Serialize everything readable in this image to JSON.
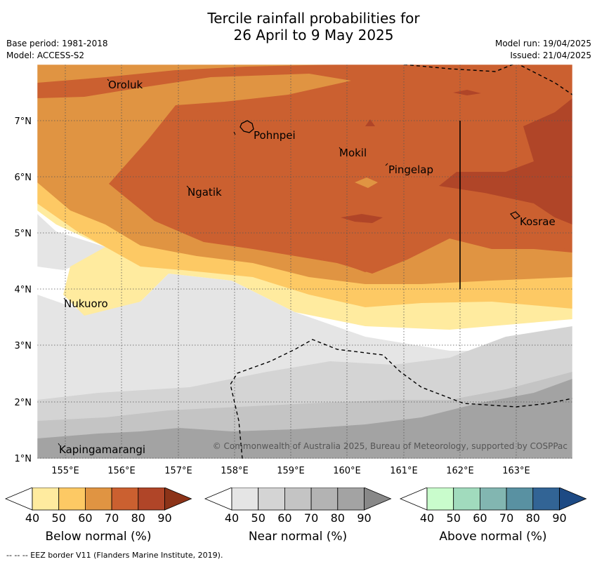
{
  "title_line1": "Tercile rainfall probabilities for",
  "title_line2": "26 April to 9 May 2025",
  "base_period": "Base period: 1981-2018",
  "model": "Model: ACCESS-S2",
  "model_run": "Model run: 19/04/2025",
  "issued": "Issued: 21/04/2025",
  "copyright": "© Commonwealth of Australia 2025, Bureau of Meteorology, supported by COSPPac",
  "places": {
    "oroluk": "Oroluk",
    "pohnpei": "Pohnpei",
    "mokil": "Mokil",
    "pingelap": "Pingelap",
    "ngatik": "Ngatik",
    "kosrae": "Kosrae",
    "nukuoro": "Nukuoro",
    "kapingamarangi": "Kapingamarangi"
  },
  "lat_labels": [
    "7°N",
    "6°N",
    "5°N",
    "4°N",
    "3°N",
    "2°N",
    "1°N"
  ],
  "lon_labels": [
    "155°E",
    "156°E",
    "157°E",
    "158°E",
    "159°E",
    "160°E",
    "161°E",
    "162°E",
    "163°E"
  ],
  "legend": {
    "ticks": [
      "40",
      "50",
      "60",
      "70",
      "80",
      "90"
    ],
    "below_title": "Below normal (%)",
    "near_title": "Near normal (%)",
    "above_title": "Above normal (%)",
    "below_colors": [
      "#ffffff",
      "#ffeb9f",
      "#fdc964",
      "#e09442",
      "#cb6030",
      "#b04528",
      "#8c3318"
    ],
    "near_colors": [
      "#ffffff",
      "#e5e5e5",
      "#d4d4d4",
      "#c4c4c4",
      "#b3b3b3",
      "#a3a3a3",
      "#888888"
    ],
    "above_colors": [
      "#ffffff",
      "#c9fccc",
      "#a1dbbd",
      "#82b6b1",
      "#5991a2",
      "#326495",
      "#1d4a84"
    ]
  },
  "footer": "--  --  -- EEZ border V11 (Flanders Marine Institute, 2019)."
}
